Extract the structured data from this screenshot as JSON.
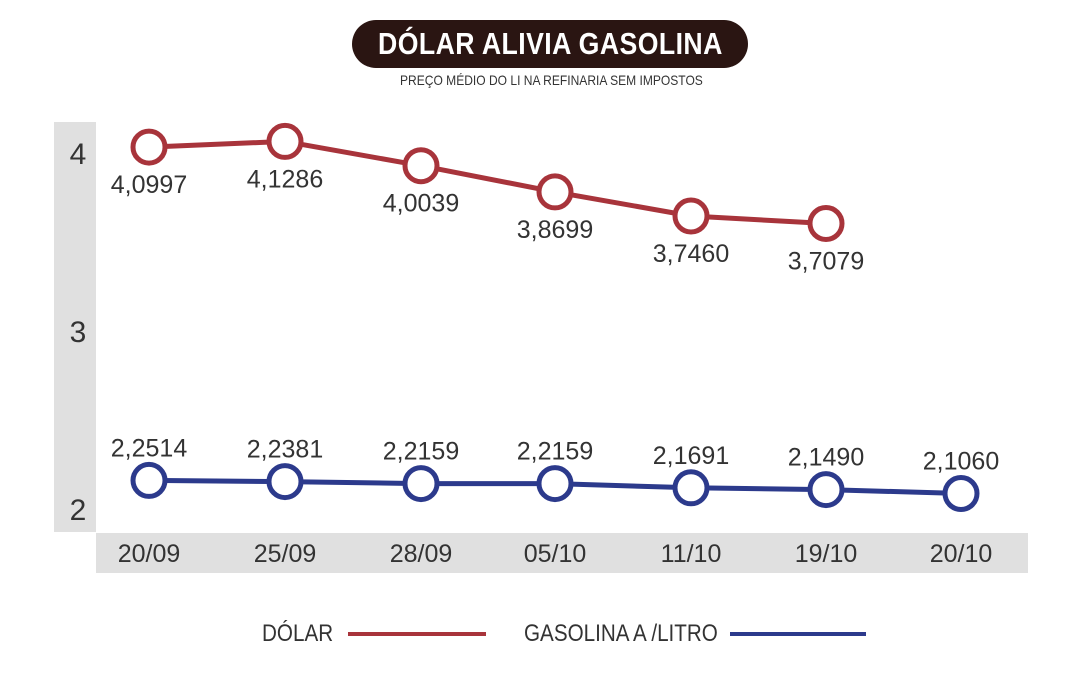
{
  "title": "DÓLAR ALIVIA GASOLINA",
  "subtitle": "PREÇO MÉDIO DO LI NA REFINARIA SEM IMPOSTOS",
  "legend": {
    "dolar_label": "DÓLAR",
    "gasolina_label": "GASOLINA A /LITRO"
  },
  "chart_data": {
    "type": "line",
    "x": [
      "20/09",
      "25/09",
      "28/09",
      "05/10",
      "11/10",
      "19/10",
      "20/10"
    ],
    "y_ticks": [
      "2",
      "3",
      "4"
    ],
    "ylim": [
      2,
      4
    ],
    "axis_scale": "broken (segment 2.1–2.3 expanded for the gasolina series)",
    "grid": false,
    "legend_position": "bottom",
    "series": [
      {
        "name": "DÓLAR",
        "color": "#a8343b",
        "values": [
          4.0997,
          4.1286,
          4.0039,
          3.8699,
          3.746,
          3.7079,
          null
        ],
        "labels": [
          "4,0997",
          "4,1286",
          "4,0039",
          "3,8699",
          "3,7460",
          "3,7079",
          null
        ]
      },
      {
        "name": "GASOLINA A /LITRO",
        "color": "#2c3a8c",
        "values": [
          2.2514,
          2.2381,
          2.2159,
          2.2159,
          2.1691,
          2.149,
          2.106
        ],
        "labels": [
          "2,2514",
          "2,2381",
          "2,2159",
          "2,2159",
          "2,1691",
          "2,1490",
          "2,1060"
        ]
      }
    ],
    "colors": {
      "title_background": "#2a1512",
      "axis_band": "#e0e0e0"
    }
  }
}
